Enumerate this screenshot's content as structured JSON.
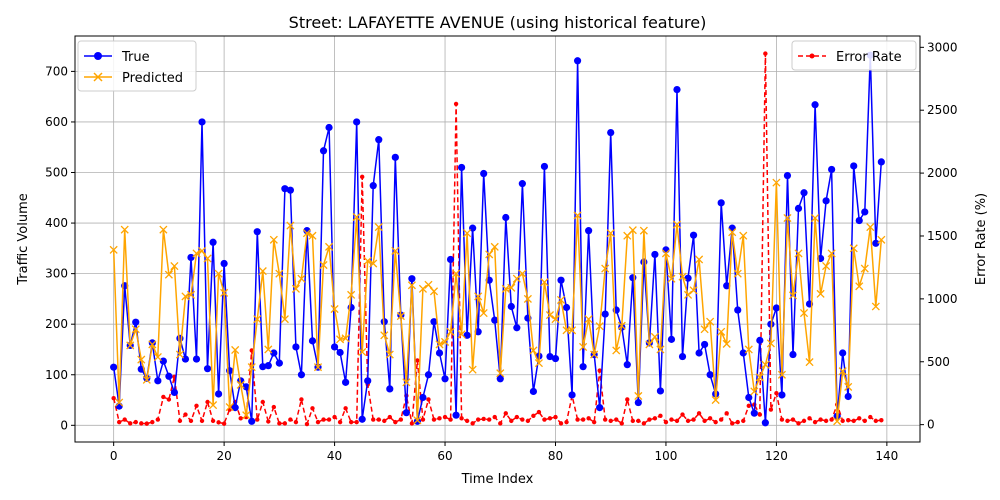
{
  "chart_data": {
    "type": "line",
    "title": "Street: LAFAYETTE AVENUE (using historical feature)",
    "xlabel": "Time Index",
    "ylabel": "Traffic Volume",
    "y2label": "Error Rate (%)",
    "xlim": [
      -7,
      146
    ],
    "ylim": [
      -33,
      770
    ],
    "y2lim": [
      -138,
      3090
    ],
    "xticks": [
      0,
      20,
      40,
      60,
      80,
      100,
      120,
      140
    ],
    "yticks": [
      0,
      100,
      200,
      300,
      400,
      500,
      600,
      700
    ],
    "y2ticks": [
      0,
      500,
      1000,
      1500,
      2000,
      2500,
      3000
    ],
    "grid": true,
    "legend_left_position": "upper-left",
    "legend_right_position": "upper-right",
    "colors": {
      "true": "#0000ff",
      "predicted": "#ffa500",
      "error": "#ff0000"
    },
    "series": [
      {
        "name": "True",
        "axis": "left",
        "marker": "circle",
        "style": "solid",
        "values": [
          115,
          38,
          276,
          158,
          204,
          111,
          93,
          163,
          88,
          127,
          97,
          65,
          172,
          131,
          332,
          131,
          600,
          112,
          362,
          62,
          320,
          108,
          35,
          88,
          76,
          8,
          383,
          116,
          118,
          143,
          123,
          468,
          465,
          155,
          100,
          385,
          167,
          115,
          543,
          589,
          155,
          144,
          85,
          233,
          600,
          12,
          88,
          474,
          565,
          205,
          72,
          530,
          218,
          25,
          290,
          8,
          55,
          100,
          205,
          143,
          92,
          328,
          20,
          510,
          178,
          390,
          185,
          498,
          287,
          208,
          92,
          411,
          235,
          193,
          478,
          212,
          67,
          137,
          512,
          136,
          132,
          287,
          233,
          60,
          721,
          116,
          385,
          140,
          35,
          220,
          579,
          228,
          194,
          120,
          292,
          45,
          323,
          163,
          338,
          68,
          347,
          170,
          664,
          136,
          291,
          376,
          143,
          160,
          100,
          62,
          440,
          276,
          390,
          228,
          143,
          55,
          24,
          168,
          5,
          200,
          232,
          60,
          494,
          140,
          429,
          460,
          240,
          634,
          330,
          444,
          506,
          18,
          143,
          57,
          513,
          405,
          422,
          732,
          360,
          521
        ]
      },
      {
        "name": "Predicted",
        "axis": "left",
        "marker": "x",
        "style": "solid",
        "values": [
          347,
          45,
          387,
          158,
          190,
          130,
          90,
          160,
          135,
          387,
          298,
          315,
          140,
          255,
          258,
          340,
          345,
          330,
          40,
          300,
          262,
          36,
          149,
          80,
          20,
          115,
          210,
          305,
          150,
          367,
          300,
          210,
          395,
          270,
          290,
          380,
          375,
          115,
          317,
          353,
          230,
          170,
          172,
          258,
          412,
          145,
          325,
          320,
          392,
          178,
          140,
          345,
          216,
          85,
          277,
          10,
          270,
          278,
          265,
          160,
          165,
          185,
          300,
          180,
          380,
          110,
          255,
          222,
          338,
          353,
          103,
          270,
          272,
          290,
          300,
          250,
          148,
          123,
          283,
          218,
          210,
          248,
          188,
          188,
          415,
          155,
          210,
          140,
          196,
          310,
          380,
          148,
          197,
          375,
          386,
          58,
          385,
          160,
          175,
          150,
          340,
          290,
          397,
          294,
          258,
          267,
          328,
          190,
          205,
          50,
          185,
          161,
          382,
          300,
          375,
          150,
          67,
          95,
          120,
          162,
          480,
          100,
          410,
          257,
          340,
          222,
          125,
          410,
          260,
          315,
          340,
          8,
          107,
          76,
          350,
          275,
          310,
          392,
          235,
          367
        ]
      },
      {
        "name": "Error Rate",
        "axis": "right",
        "marker": "dot",
        "style": "dashed",
        "values": [
          210,
          20,
          40,
          10,
          20,
          10,
          8,
          20,
          40,
          220,
          200,
          380,
          30,
          80,
          30,
          150,
          30,
          180,
          30,
          18,
          8,
          120,
          180,
          50,
          60,
          590,
          40,
          180,
          25,
          140,
          10,
          10,
          40,
          20,
          200,
          5,
          130,
          20,
          40,
          40,
          60,
          20,
          130,
          20,
          20,
          1970,
          320,
          40,
          40,
          30,
          60,
          20,
          40,
          230,
          10,
          510,
          40,
          200,
          40,
          50,
          60,
          40,
          2550,
          50,
          30,
          10,
          40,
          45,
          40,
          60,
          10,
          90,
          30,
          60,
          40,
          30,
          70,
          100,
          40,
          50,
          60,
          10,
          20,
          230,
          40,
          40,
          50,
          20,
          430,
          40,
          30,
          40,
          10,
          200,
          30,
          30,
          10,
          40,
          50,
          70,
          20,
          40,
          30,
          80,
          30,
          40,
          90,
          30,
          50,
          20,
          40,
          90,
          10,
          20,
          30,
          150,
          160,
          80,
          2950,
          120,
          250,
          40,
          30,
          40,
          10,
          30,
          50,
          20,
          40,
          30,
          40,
          160,
          30,
          35,
          30,
          50,
          30,
          60,
          30,
          35
        ]
      }
    ]
  }
}
